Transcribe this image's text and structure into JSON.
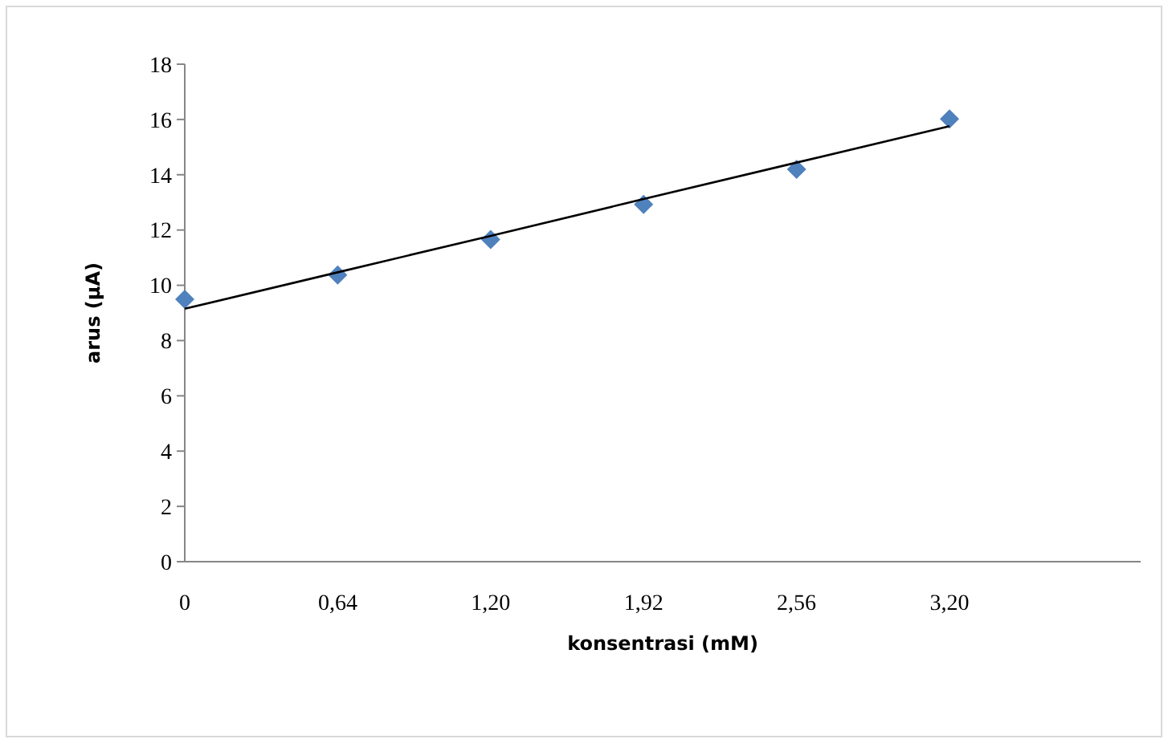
{
  "chart_data": {
    "type": "scatter",
    "xlabel": "konsentrasi (mM)",
    "ylabel": "arus (µA)",
    "categories": [
      "0",
      "0,64",
      "1,20",
      "1,92",
      "2,56",
      "3,20",
      null
    ],
    "ylim": [
      0,
      18
    ],
    "yticks": [
      0,
      2,
      4,
      6,
      8,
      10,
      12,
      14,
      16,
      18
    ],
    "grid": false,
    "series": [
      {
        "marker": "diamond",
        "color": "#4f81bd",
        "values": [
          9.49,
          10.37,
          11.66,
          12.93,
          14.2,
          16.02,
          null
        ]
      },
      {
        "type": "line",
        "marker": "none",
        "color": "#000000",
        "line_style": "solid",
        "values": [
          9.15,
          10.47,
          11.79,
          13.12,
          14.44,
          15.76,
          null
        ]
      }
    ]
  }
}
